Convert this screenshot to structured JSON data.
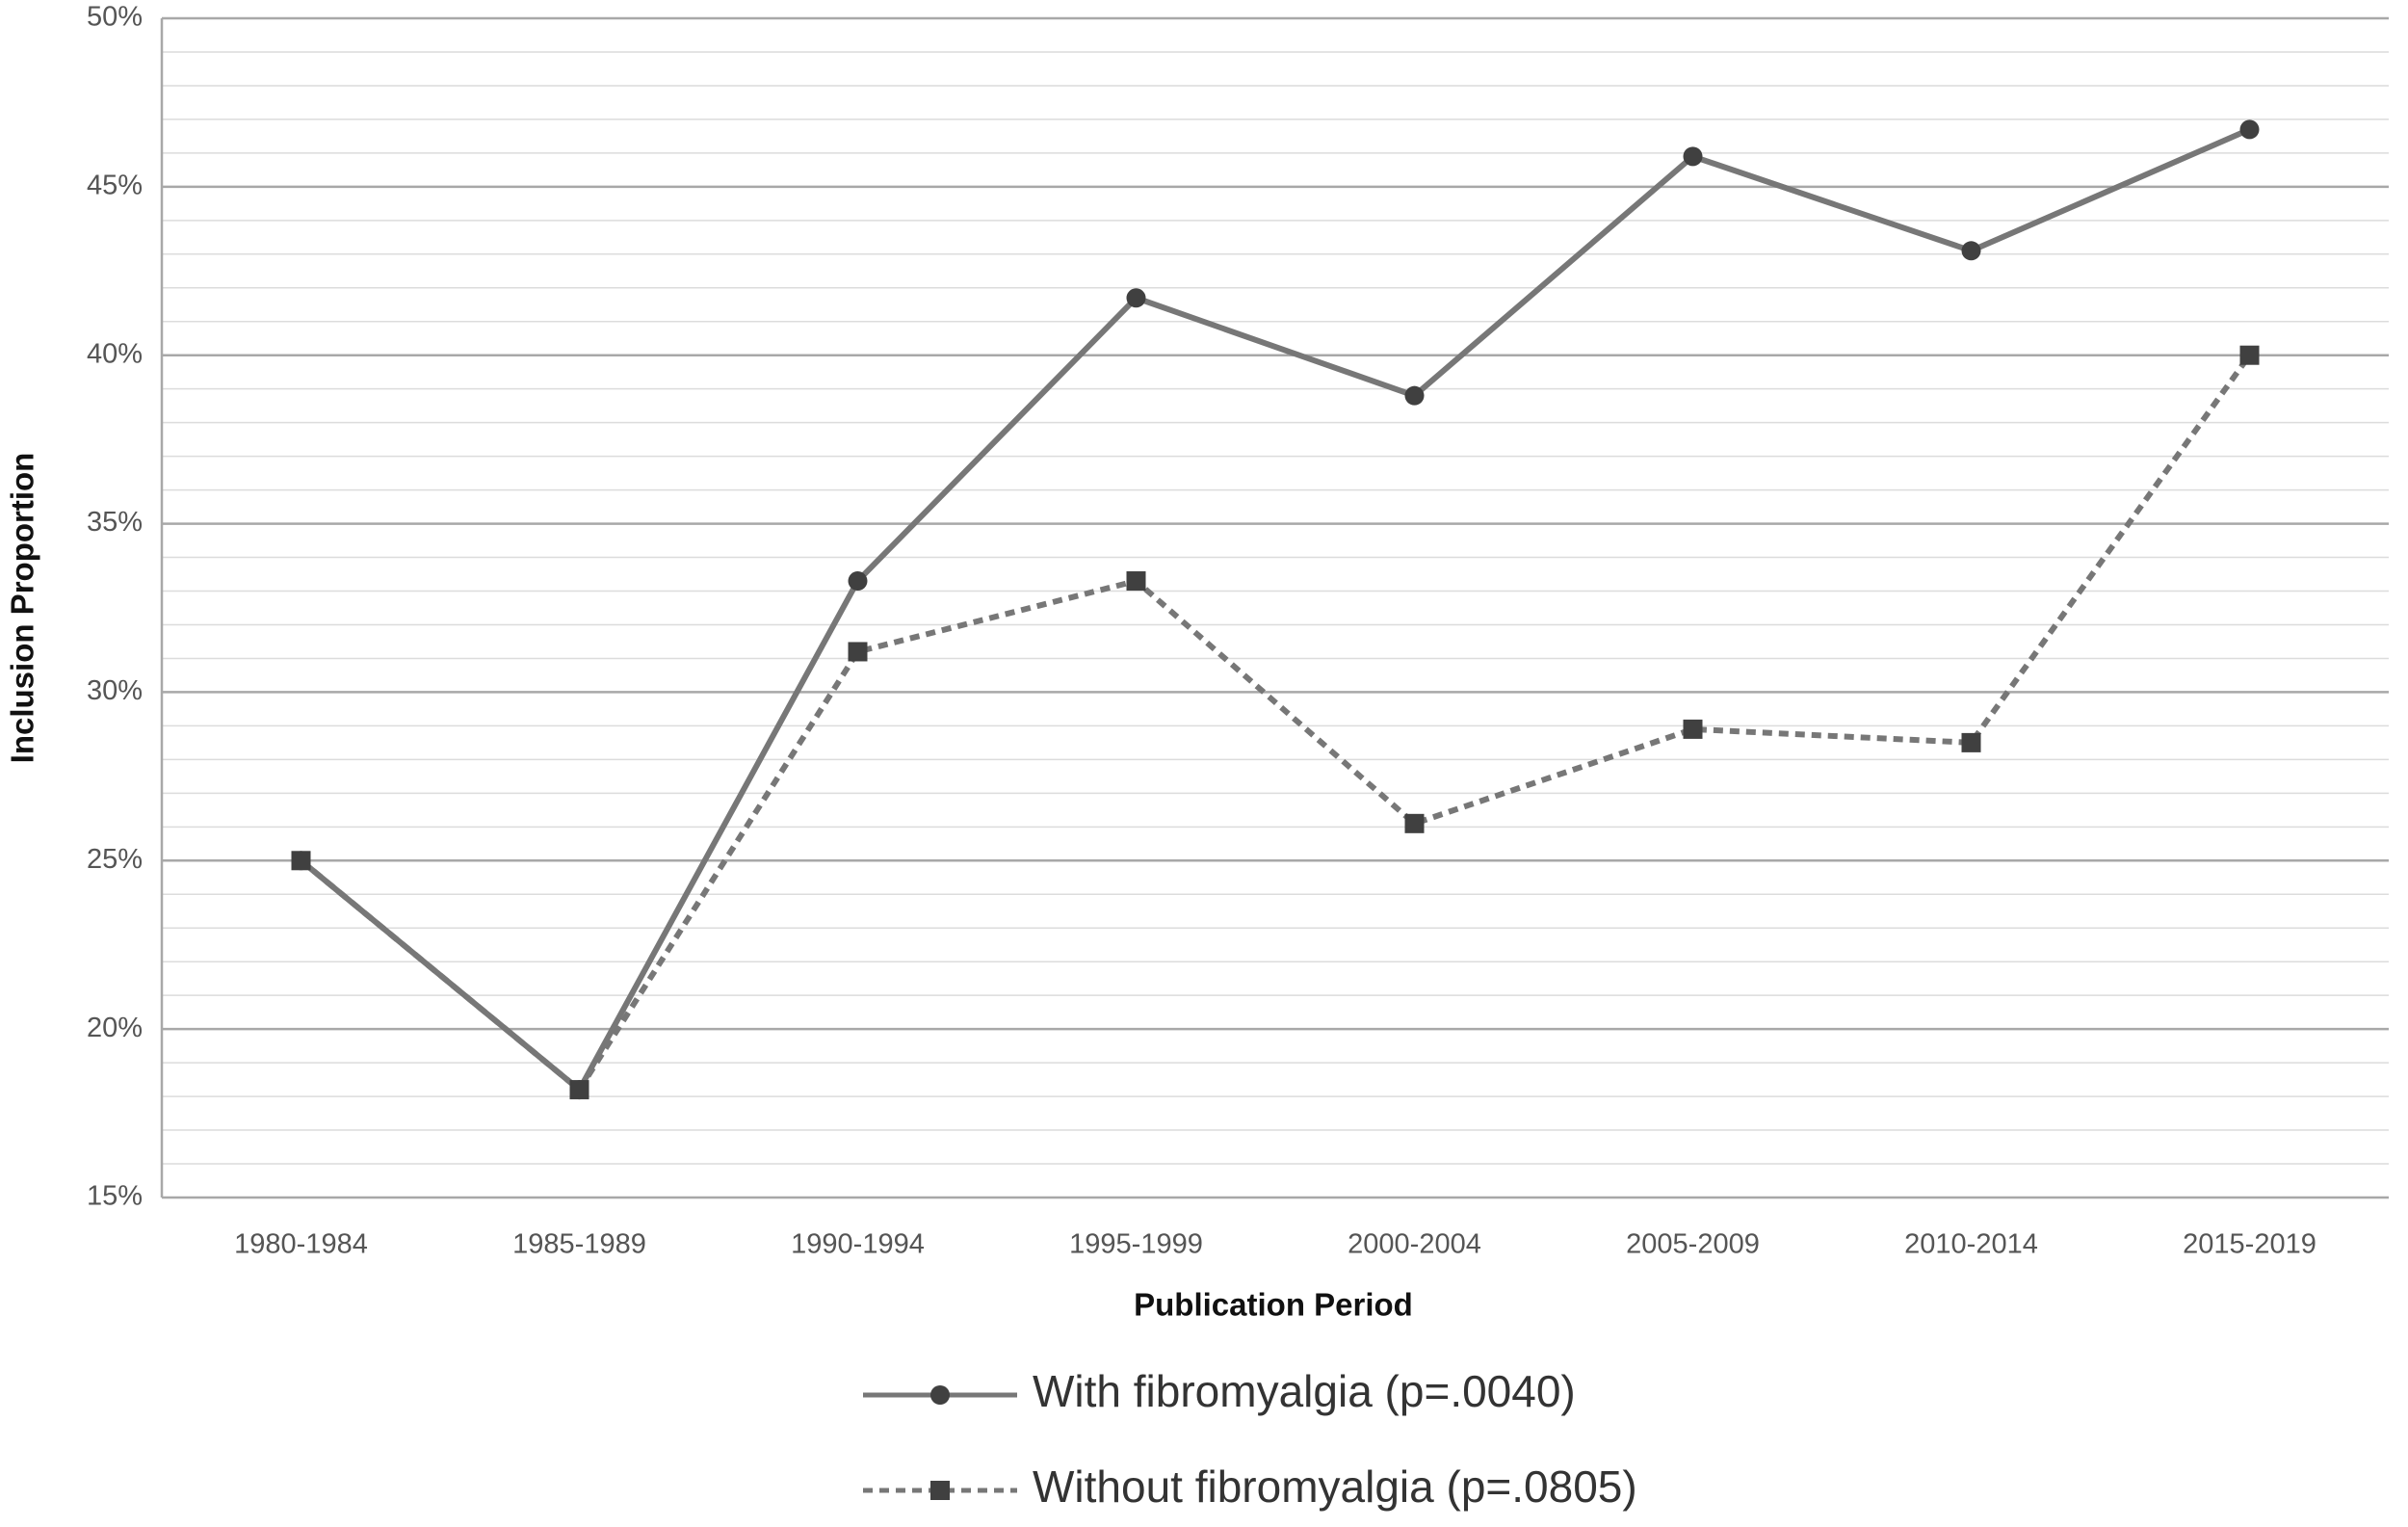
{
  "chart_data": {
    "type": "line",
    "x_label": "Publication Period",
    "y_label": "Inclusion Proportion",
    "categories": [
      "1980-1984",
      "1985-1989",
      "1990-1994",
      "1995-1999",
      "2000-2004",
      "2005-2009",
      "2010-2014",
      "2015-2019"
    ],
    "series": [
      {
        "name": "With fibromyalgia (p=.0040)",
        "color": "#777777",
        "marker_color": "#404040",
        "marker": "circle",
        "line_style": "solid",
        "values": [
          25,
          18.2,
          33.3,
          41.7,
          38.8,
          45.9,
          43.1,
          46.7
        ]
      },
      {
        "name": "Without fibromyalgia (p=.0805)",
        "color": "#777777",
        "marker_color": "#404040",
        "marker": "square",
        "line_style": "dotted",
        "values": [
          25,
          18.2,
          31.2,
          33.3,
          26.1,
          28.9,
          28.5,
          40.0
        ]
      }
    ],
    "ylim": [
      15,
      50
    ],
    "yticks": [
      {
        "value": 15,
        "label": "15%"
      },
      {
        "value": 20,
        "label": "20%"
      },
      {
        "value": 25,
        "label": "25%"
      },
      {
        "value": 30,
        "label": "30%"
      },
      {
        "value": 35,
        "label": "35%"
      },
      {
        "value": 40,
        "label": "40%"
      },
      {
        "value": 45,
        "label": "45%"
      },
      {
        "value": 50,
        "label": "50%"
      }
    ],
    "minor_yticks": [
      16,
      17,
      18,
      19,
      21,
      22,
      23,
      24,
      26,
      27,
      28,
      29,
      31,
      32,
      33,
      34,
      36,
      37,
      38,
      39,
      41,
      42,
      43,
      44,
      46,
      47,
      48,
      49
    ],
    "grid": true,
    "legend": "bottom"
  }
}
